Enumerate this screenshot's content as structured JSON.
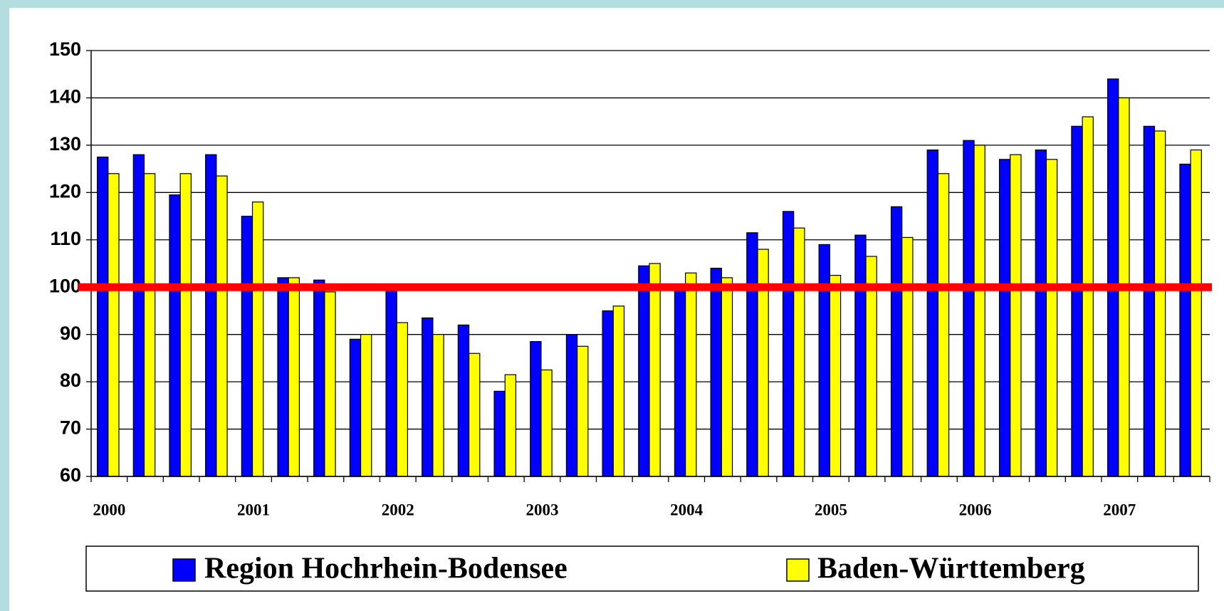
{
  "chart_data": {
    "type": "bar",
    "categories": [
      "2000",
      null,
      null,
      null,
      "2001",
      null,
      null,
      null,
      "2002",
      null,
      null,
      null,
      "2003",
      null,
      null,
      null,
      "2004",
      null,
      null,
      null,
      "2005",
      null,
      null,
      null,
      "2006",
      null,
      null,
      null,
      "2007",
      null,
      null
    ],
    "series": [
      {
        "name": "Region Hochrhein-Bodensee",
        "color": "#0000ff",
        "values": [
          127.5,
          128,
          119.5,
          128,
          115,
          102,
          101.5,
          89,
          100,
          93.5,
          92,
          78,
          88.5,
          90,
          95,
          104.5,
          100,
          104,
          111.5,
          116,
          109,
          111,
          117,
          129,
          131,
          127,
          129,
          134,
          144,
          134,
          126
        ]
      },
      {
        "name": "Baden-Württemberg",
        "color": "#ffff00",
        "values": [
          124,
          124,
          124,
          123.5,
          118,
          102,
          99,
          90,
          92.5,
          90,
          86,
          81.5,
          82.5,
          87.5,
          96,
          105,
          103,
          102,
          108,
          112.5,
          102.5,
          106.5,
          110.5,
          124,
          130,
          128,
          127,
          136,
          140,
          133,
          129
        ]
      }
    ],
    "ylim": [
      60,
      150
    ],
    "yticks": [
      60,
      70,
      80,
      90,
      100,
      110,
      120,
      130,
      140,
      150
    ],
    "grid": true,
    "reference_line": {
      "value": 100,
      "color": "#ff0000"
    },
    "legend": "bottom"
  }
}
